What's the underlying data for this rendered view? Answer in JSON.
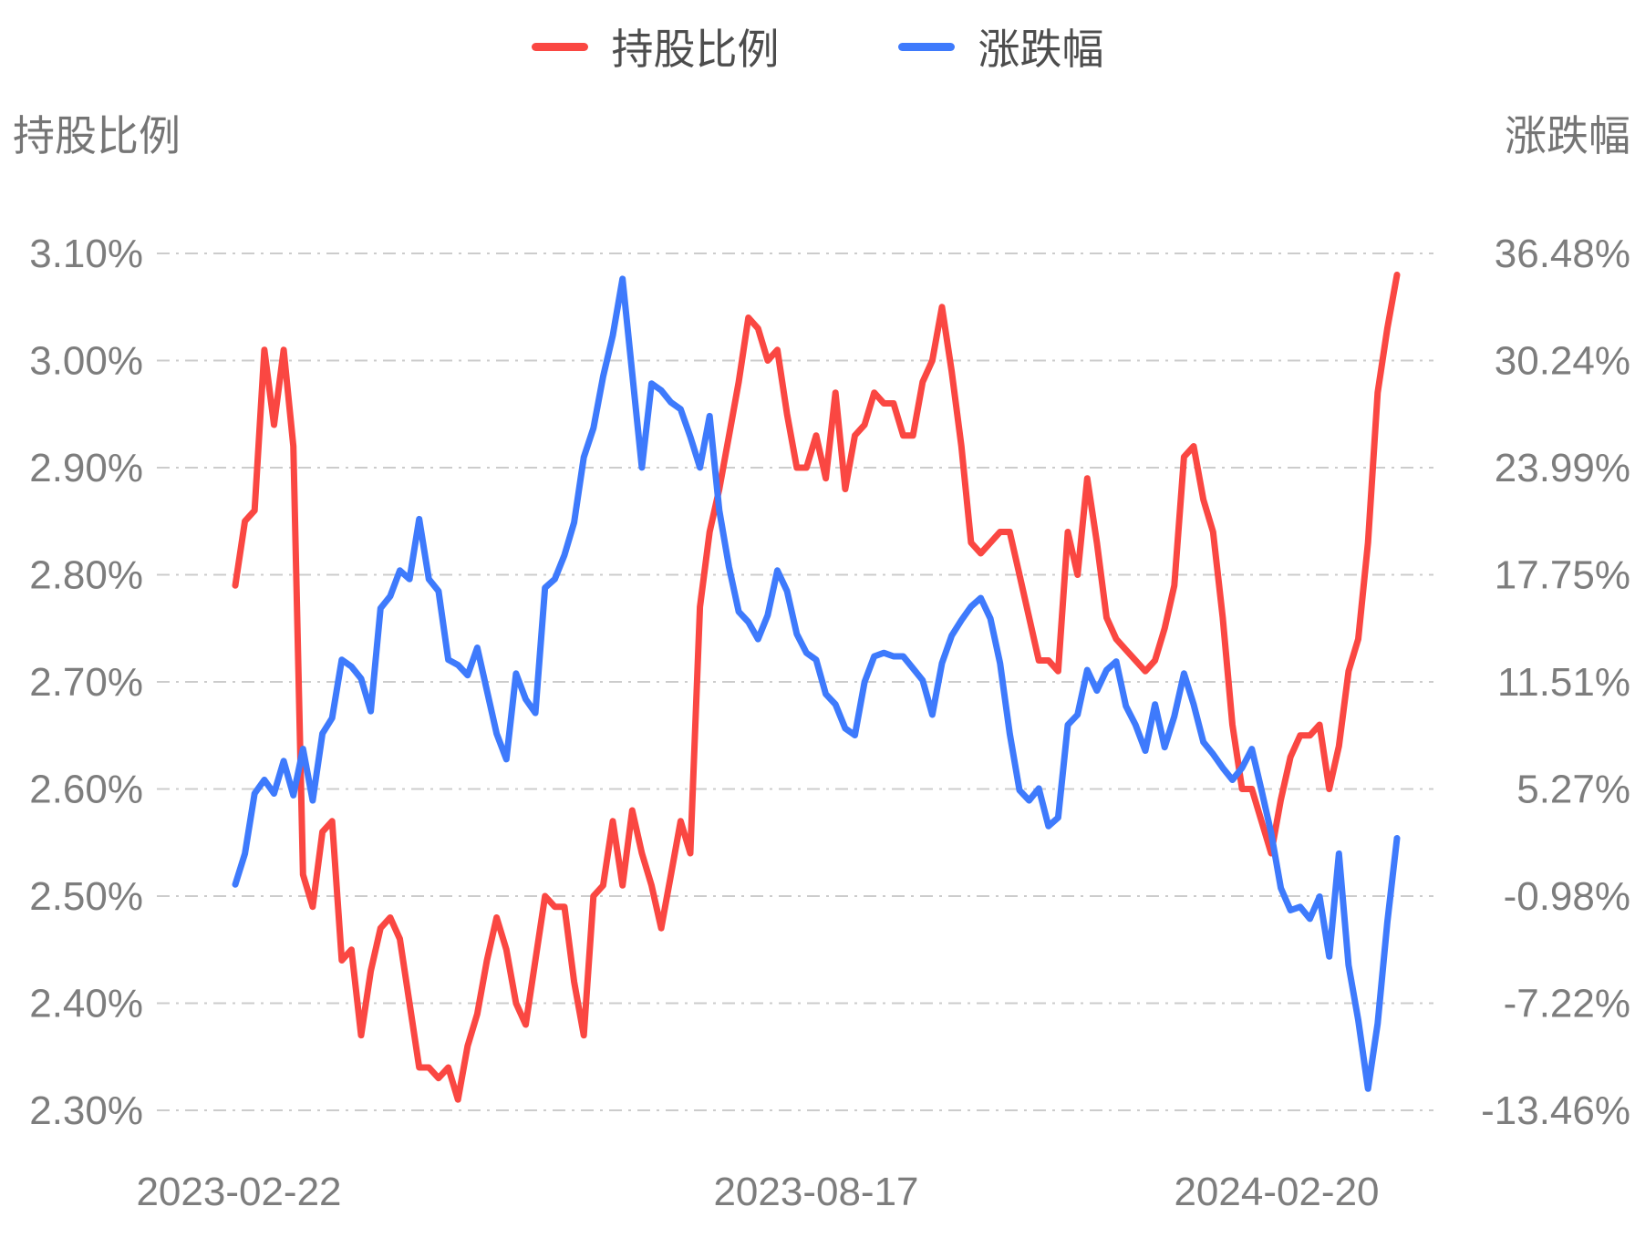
{
  "legend": {
    "items": [
      {
        "label": "持股比例",
        "color": "#fa4742"
      },
      {
        "label": "涨跌幅",
        "color": "#3e7afc"
      }
    ]
  },
  "left_axis": {
    "title": "持股比例",
    "tick_labels": [
      "3.10%",
      "3.00%",
      "2.90%",
      "2.80%",
      "2.70%",
      "2.60%",
      "2.50%",
      "2.40%",
      "2.30%"
    ],
    "min": 2.3,
    "max": 3.1,
    "text_color": "#7d7d7d"
  },
  "right_axis": {
    "title": "涨跌幅",
    "tick_labels": [
      "36.48%",
      "30.24%",
      "23.99%",
      "17.75%",
      "11.51%",
      "5.27%",
      "-0.98%",
      "-7.22%",
      "-13.46%"
    ],
    "min": -13.46,
    "max": 36.48,
    "text_color": "#7d7d7d"
  },
  "x_axis": {
    "tick_labels": [
      "2023-02-22",
      "2023-08-17",
      "2024-02-20"
    ]
  },
  "grid": {
    "color": "#cccccc",
    "dash": "14 7 3 7"
  },
  "chart_data": {
    "type": "line",
    "x_tick_labels": [
      "2023-02-22",
      "2023-08-17",
      "2024-02-20"
    ],
    "n_points": 121,
    "legend_position": "top-center",
    "grid_on": true,
    "series": [
      {
        "name": "持股比例",
        "axis": "left",
        "color": "#fa4742",
        "ylim": [
          2.3,
          3.1
        ],
        "values": [
          2.79,
          2.85,
          2.86,
          3.01,
          2.94,
          3.01,
          2.92,
          2.52,
          2.49,
          2.56,
          2.57,
          2.44,
          2.45,
          2.37,
          2.43,
          2.47,
          2.48,
          2.46,
          2.4,
          2.34,
          2.34,
          2.33,
          2.34,
          2.31,
          2.36,
          2.39,
          2.44,
          2.48,
          2.45,
          2.4,
          2.38,
          2.44,
          2.5,
          2.49,
          2.49,
          2.42,
          2.37,
          2.5,
          2.51,
          2.57,
          2.51,
          2.58,
          2.54,
          2.51,
          2.47,
          2.52,
          2.57,
          2.54,
          2.77,
          2.84,
          2.88,
          2.93,
          2.98,
          3.04,
          3.03,
          3.0,
          3.01,
          2.95,
          2.9,
          2.9,
          2.93,
          2.89,
          2.97,
          2.88,
          2.93,
          2.94,
          2.97,
          2.96,
          2.96,
          2.93,
          2.93,
          2.98,
          3.0,
          3.05,
          2.99,
          2.92,
          2.83,
          2.82,
          2.83,
          2.84,
          2.84,
          2.8,
          2.76,
          2.72,
          2.72,
          2.71,
          2.84,
          2.8,
          2.89,
          2.83,
          2.76,
          2.74,
          2.73,
          2.72,
          2.71,
          2.72,
          2.75,
          2.79,
          2.91,
          2.92,
          2.87,
          2.84,
          2.76,
          2.66,
          2.6,
          2.6,
          2.57,
          2.54,
          2.59,
          2.63,
          2.65,
          2.65,
          2.66,
          2.6,
          2.64,
          2.71,
          2.74,
          2.83,
          2.97,
          3.03,
          3.08
        ]
      },
      {
        "name": "涨跌幅",
        "axis": "right",
        "color": "#3e7afc",
        "ylim": [
          -13.46,
          36.48
        ],
        "values": [
          -0.3,
          1.5,
          5.0,
          5.8,
          5.0,
          6.9,
          4.9,
          7.6,
          4.6,
          8.5,
          9.4,
          12.8,
          12.4,
          11.7,
          9.8,
          15.8,
          16.5,
          18.0,
          17.5,
          21.0,
          17.5,
          16.8,
          12.8,
          12.5,
          11.9,
          13.5,
          11.0,
          8.5,
          7.0,
          12.0,
          10.5,
          9.7,
          17.0,
          17.5,
          18.9,
          20.8,
          24.6,
          26.3,
          29.3,
          31.7,
          35.0,
          29.5,
          24.0,
          28.9,
          28.5,
          27.8,
          27.4,
          25.8,
          24.0,
          27.0,
          21.5,
          18.2,
          15.6,
          15.0,
          14.0,
          15.4,
          18.0,
          16.8,
          14.3,
          13.2,
          12.8,
          10.8,
          10.2,
          8.8,
          8.4,
          11.5,
          13.0,
          13.2,
          13.0,
          13.0,
          12.3,
          11.6,
          9.6,
          12.6,
          14.2,
          15.1,
          15.9,
          16.4,
          15.2,
          12.6,
          8.5,
          5.2,
          4.6,
          5.3,
          3.1,
          3.6,
          9.0,
          9.6,
          12.2,
          11.0,
          12.2,
          12.7,
          10.1,
          9.0,
          7.5,
          10.2,
          7.7,
          9.5,
          12.0,
          10.2,
          8.0,
          7.3,
          6.5,
          5.8,
          6.5,
          7.6,
          5.2,
          2.7,
          -0.5,
          -1.8,
          -1.6,
          -2.3,
          -1.0,
          -4.5,
          1.5,
          -5.0,
          -8.2,
          -12.2,
          -8.4,
          -2.5,
          2.4
        ]
      }
    ]
  }
}
